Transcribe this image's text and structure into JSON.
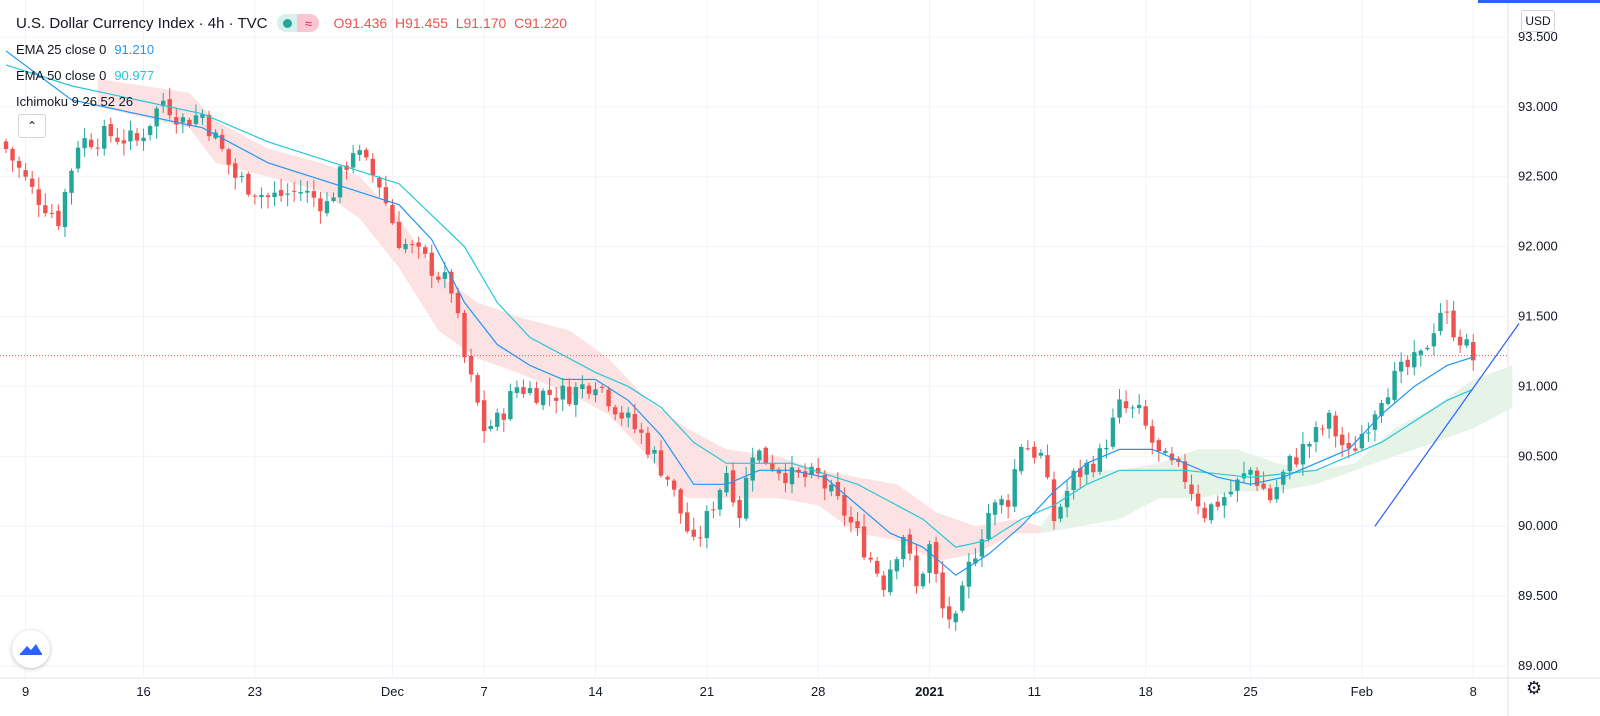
{
  "header": {
    "title": "U.S. Dollar Currency Index · 4h · TVC",
    "ohlc": {
      "o_key": "O",
      "o": "91.436",
      "h_key": "H",
      "h": "91.455",
      "l_key": "L",
      "l": "91.170",
      "c_key": "C",
      "c": "91.220"
    }
  },
  "indicators": [
    {
      "name": "EMA 25 close 0",
      "value": "91.210",
      "color": "#2196f3"
    },
    {
      "name": "EMA 50 close 0",
      "value": "90.977",
      "color": "#26c6da"
    },
    {
      "name": "Ichimoku 9 26 52 26",
      "value": ""
    }
  ],
  "controls": {
    "currency": "USD",
    "collapse_icon": "chevron-up-icon",
    "settings_icon": "gear-icon",
    "logo_icon": "tradingview-logo-icon",
    "collapse_glyph": "⌃",
    "gear_glyph": "⚙"
  },
  "colors": {
    "up": "#26a69a",
    "down": "#ef5350",
    "ema25": "#2196f3",
    "ema50": "#26c6da",
    "kumo_bear": "#fde2e3",
    "kumo_bull": "#e6f4e8",
    "trendline": "#2962ff",
    "price_line": "#ef5350"
  },
  "chart_data": {
    "type": "candlestick",
    "ylim": [
      88.9,
      93.75
    ],
    "y_ticks": [
      "93.500",
      "93.000",
      "92.500",
      "92.000",
      "91.500",
      "91.000",
      "90.500",
      "90.000",
      "89.500",
      "89.000"
    ],
    "x_ticks": [
      "9",
      "16",
      "23",
      "Dec",
      "7",
      "14",
      "21",
      "28",
      "2021",
      "11",
      "18",
      "25",
      "Feb",
      "8"
    ],
    "current_price": 91.22,
    "price_path": [
      [
        0,
        92.7
      ],
      [
        4,
        92.4
      ],
      [
        8,
        92.2
      ],
      [
        11,
        92.75
      ],
      [
        16,
        92.8
      ],
      [
        20,
        92.75
      ],
      [
        24,
        93.05
      ],
      [
        27,
        92.9
      ],
      [
        30,
        92.95
      ],
      [
        35,
        92.5
      ],
      [
        40,
        92.35
      ],
      [
        45,
        92.4
      ],
      [
        49,
        92.3
      ],
      [
        53,
        92.7
      ],
      [
        57,
        92.45
      ],
      [
        60,
        92.05
      ],
      [
        64,
        91.9
      ],
      [
        68,
        91.7
      ],
      [
        70,
        91.2
      ],
      [
        73,
        90.7
      ],
      [
        75,
        90.75
      ],
      [
        78,
        91.0
      ],
      [
        82,
        90.95
      ],
      [
        86,
        90.95
      ],
      [
        90,
        91.05
      ],
      [
        94,
        90.8
      ],
      [
        97,
        90.65
      ],
      [
        101,
        90.35
      ],
      [
        105,
        89.85
      ],
      [
        107,
        90.05
      ],
      [
        110,
        90.4
      ],
      [
        112,
        90.1
      ],
      [
        114,
        90.55
      ],
      [
        117,
        90.45
      ],
      [
        120,
        90.35
      ],
      [
        124,
        90.35
      ],
      [
        128,
        90.1
      ],
      [
        131,
        89.85
      ],
      [
        134,
        89.6
      ],
      [
        137,
        89.95
      ],
      [
        139,
        89.55
      ],
      [
        141,
        89.85
      ],
      [
        143,
        89.4
      ],
      [
        145,
        89.3
      ],
      [
        147,
        89.7
      ],
      [
        150,
        90.1
      ],
      [
        153,
        90.2
      ],
      [
        155,
        90.6
      ],
      [
        158,
        90.5
      ],
      [
        160,
        90.05
      ],
      [
        163,
        90.35
      ],
      [
        167,
        90.5
      ],
      [
        170,
        90.85
      ],
      [
        173,
        90.8
      ],
      [
        176,
        90.5
      ],
      [
        180,
        90.35
      ],
      [
        183,
        90.1
      ],
      [
        187,
        90.25
      ],
      [
        190,
        90.4
      ],
      [
        193,
        90.2
      ],
      [
        196,
        90.45
      ],
      [
        199,
        90.6
      ],
      [
        202,
        90.75
      ],
      [
        205,
        90.5
      ],
      [
        208,
        90.75
      ],
      [
        210,
        90.95
      ],
      [
        213,
        91.1
      ],
      [
        216,
        91.2
      ],
      [
        219,
        91.55
      ],
      [
        222,
        91.35
      ],
      [
        224,
        91.2
      ]
    ],
    "ema25_path": [
      [
        0,
        93.4
      ],
      [
        10,
        93.05
      ],
      [
        20,
        92.95
      ],
      [
        30,
        92.85
      ],
      [
        40,
        92.6
      ],
      [
        50,
        92.45
      ],
      [
        60,
        92.3
      ],
      [
        65,
        92.05
      ],
      [
        70,
        91.6
      ],
      [
        75,
        91.3
      ],
      [
        80,
        91.15
      ],
      [
        85,
        91.05
      ],
      [
        90,
        91.05
      ],
      [
        95,
        90.9
      ],
      [
        100,
        90.65
      ],
      [
        105,
        90.3
      ],
      [
        110,
        90.3
      ],
      [
        115,
        90.4
      ],
      [
        120,
        90.4
      ],
      [
        125,
        90.35
      ],
      [
        130,
        90.15
      ],
      [
        135,
        89.95
      ],
      [
        140,
        89.85
      ],
      [
        145,
        89.65
      ],
      [
        150,
        89.8
      ],
      [
        155,
        90.0
      ],
      [
        160,
        90.25
      ],
      [
        165,
        90.45
      ],
      [
        170,
        90.55
      ],
      [
        175,
        90.55
      ],
      [
        180,
        90.45
      ],
      [
        185,
        90.35
      ],
      [
        190,
        90.3
      ],
      [
        195,
        90.35
      ],
      [
        200,
        90.45
      ],
      [
        205,
        90.55
      ],
      [
        210,
        90.8
      ],
      [
        215,
        91.0
      ],
      [
        220,
        91.15
      ],
      [
        224,
        91.21
      ]
    ],
    "ema50_path": [
      [
        0,
        93.3
      ],
      [
        10,
        93.15
      ],
      [
        20,
        93.05
      ],
      [
        30,
        92.95
      ],
      [
        40,
        92.75
      ],
      [
        50,
        92.6
      ],
      [
        60,
        92.45
      ],
      [
        70,
        92.0
      ],
      [
        75,
        91.6
      ],
      [
        80,
        91.35
      ],
      [
        90,
        91.1
      ],
      [
        95,
        91.0
      ],
      [
        100,
        90.85
      ],
      [
        105,
        90.6
      ],
      [
        110,
        90.45
      ],
      [
        120,
        90.45
      ],
      [
        130,
        90.3
      ],
      [
        140,
        90.05
      ],
      [
        145,
        89.85
      ],
      [
        150,
        89.9
      ],
      [
        155,
        90.05
      ],
      [
        160,
        90.15
      ],
      [
        165,
        90.3
      ],
      [
        170,
        90.4
      ],
      [
        175,
        90.4
      ],
      [
        180,
        90.4
      ],
      [
        190,
        90.35
      ],
      [
        200,
        90.4
      ],
      [
        210,
        90.6
      ],
      [
        215,
        90.75
      ],
      [
        220,
        90.9
      ],
      [
        224,
        90.98
      ]
    ],
    "cloud_bear": [
      [
        14,
        93.2,
        93.0
      ],
      [
        28,
        93.1,
        92.85
      ],
      [
        32,
        92.9,
        92.6
      ],
      [
        40,
        92.7,
        92.5
      ],
      [
        48,
        92.6,
        92.4
      ],
      [
        54,
        92.5,
        92.2
      ],
      [
        60,
        92.2,
        91.85
      ],
      [
        66,
        91.8,
        91.4
      ],
      [
        72,
        91.6,
        91.2
      ],
      [
        78,
        91.5,
        91.1
      ],
      [
        86,
        91.4,
        90.95
      ],
      [
        92,
        91.2,
        90.8
      ],
      [
        98,
        90.9,
        90.5
      ],
      [
        104,
        90.7,
        90.2
      ],
      [
        110,
        90.55,
        90.2
      ],
      [
        118,
        90.5,
        90.2
      ],
      [
        124,
        90.4,
        90.15
      ],
      [
        130,
        90.35,
        89.95
      ],
      [
        136,
        90.3,
        89.9
      ],
      [
        142,
        90.1,
        89.75
      ],
      [
        148,
        90.0,
        89.8
      ],
      [
        154,
        90.05,
        89.95
      ],
      [
        158,
        90.0,
        89.95
      ]
    ],
    "cloud_bull": [
      [
        158,
        90.0,
        89.95
      ],
      [
        164,
        90.4,
        90.0
      ],
      [
        170,
        90.4,
        90.05
      ],
      [
        176,
        90.45,
        90.2
      ],
      [
        182,
        90.55,
        90.2
      ],
      [
        188,
        90.55,
        90.25
      ],
      [
        194,
        90.45,
        90.25
      ],
      [
        200,
        90.4,
        90.3
      ],
      [
        206,
        90.45,
        90.4
      ],
      [
        212,
        90.7,
        90.5
      ],
      [
        218,
        90.85,
        90.6
      ],
      [
        224,
        91.05,
        90.7
      ],
      [
        230,
        91.15,
        90.85
      ]
    ],
    "trendline": [
      [
        209,
        90.0
      ],
      [
        231,
        91.45
      ]
    ]
  }
}
